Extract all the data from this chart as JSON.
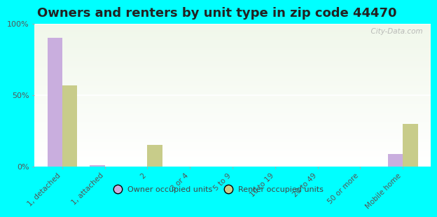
{
  "title": "Owners and renters by unit type in zip code 44470",
  "categories": [
    "1, detached",
    "1, attached",
    "2",
    "3 or 4",
    "5 to 9",
    "10 to 19",
    "20 to 49",
    "50 or more",
    "Mobile home"
  ],
  "owner_values": [
    90,
    1,
    0,
    0,
    0,
    0,
    0,
    0,
    9
  ],
  "renter_values": [
    57,
    0,
    15,
    0,
    0,
    0,
    0,
    0,
    30
  ],
  "owner_color": "#c9aede",
  "renter_color": "#c8cc8a",
  "background_color": "#00ffff",
  "plot_bg_color_top": "#f0f7ea",
  "plot_bg_color_bottom": "#ffffff",
  "watermark": "  City-Data.com",
  "ylabel_ticks": [
    "0%",
    "50%",
    "100%"
  ],
  "ytick_values": [
    0,
    50,
    100
  ],
  "bar_width": 0.35,
  "title_fontsize": 13,
  "title_color": "#222222"
}
